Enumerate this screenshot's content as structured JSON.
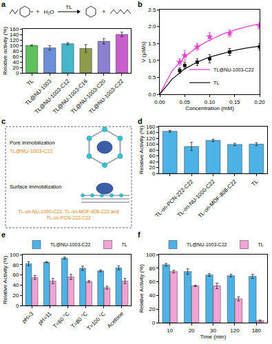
{
  "chart_data": [
    {
      "panel": "a",
      "type": "bar",
      "annotations": [
        "+",
        "H₂O",
        "TL",
        "+"
      ],
      "ylabel": "Relative activity (%)",
      "categories": [
        "TL",
        "TL@NU-1003",
        "TL@NU-1003-C12",
        "TL@NU-1003-C16",
        "TL@NU-1003-C20",
        "TL@NU-1003-C22"
      ],
      "values": [
        100,
        91,
        106,
        89,
        115,
        140
      ],
      "errors": [
        2,
        8,
        4,
        14,
        10,
        8
      ],
      "colors": [
        "#5ec15e",
        "#6a8fd8",
        "#44b7c9",
        "#8f9b4c",
        "#8a7fd0",
        "#c85fcc"
      ],
      "ylim": [
        0,
        160
      ],
      "yticks": [
        0,
        20,
        40,
        60,
        80,
        100,
        120,
        140,
        160
      ]
    },
    {
      "panel": "b",
      "type": "line",
      "xlabel": "Concentration (mM)",
      "ylabel": "V (μM/s)",
      "xlim": [
        0,
        0.2
      ],
      "xticks": [
        {
          "value": 0,
          "label": "0.00"
        },
        0.05,
        {
          "value": 0.1,
          "label": "0.10"
        },
        0.15,
        {
          "value": 0.2,
          "label": "0.20"
        }
      ],
      "ylim": [
        0,
        2.5
      ],
      "yticks": [
        {
          "value": 0,
          "label": "0.0"
        },
        0.5,
        {
          "value": 1,
          "label": "1.0"
        },
        1.5,
        {
          "value": 2,
          "label": "2.0"
        },
        2.5
      ],
      "legend": "bottom-right",
      "series": [
        {
          "name": "TL@NU-1003-C22",
          "color": "#e040d0",
          "marker": "star",
          "x": [
            0.04,
            0.05,
            0.075,
            0.1,
            0.14,
            0.2
          ],
          "values": [
            0.95,
            1.15,
            1.4,
            1.7,
            1.8,
            2.02
          ],
          "errors": [
            0.1,
            0.15,
            0.1,
            0.12,
            0.1,
            0.1
          ],
          "fit": {
            "x": [
              0,
              0.025,
              0.05,
              0.075,
              0.1,
              0.125,
              0.15,
              0.175,
              0.2
            ],
            "values": [
              0,
              0.7,
              1.1,
              1.4,
              1.6,
              1.77,
              1.9,
              2.0,
              2.08
            ]
          }
        },
        {
          "name": "TL",
          "color": "#111111",
          "marker": "square",
          "x": [
            0.04,
            0.05,
            0.075,
            0.1,
            0.14,
            0.2
          ],
          "values": [
            0.7,
            0.85,
            0.95,
            1.05,
            1.25,
            1.4
          ],
          "errors": [
            0.08,
            0.1,
            0.1,
            0.12,
            0.1,
            0.1
          ],
          "fit": {
            "x": [
              0,
              0.025,
              0.05,
              0.075,
              0.1,
              0.125,
              0.15,
              0.175,
              0.2
            ],
            "values": [
              0,
              0.45,
              0.75,
              0.95,
              1.1,
              1.2,
              1.3,
              1.37,
              1.42
            ]
          }
        }
      ]
    },
    {
      "panel": "c",
      "type": "diagram",
      "pore": {
        "title": "Pore immobilization",
        "label": "TL@NU-1003-C22"
      },
      "surface": {
        "title": "Surface immobilization",
        "label": "TL-on-NU-1000-C22, TL-on-MOF-808-C22 and TL-on-PCN-222-C22"
      }
    },
    {
      "panel": "d",
      "type": "bar",
      "ylabel": "Relative Activity (%)",
      "categories": [
        "TL@NU-1003-C22",
        "TL-on-PCN-222-C22",
        "TL-on-NU-1000-C22",
        "TL-on-MOF-808-C22",
        "TL"
      ],
      "values": [
        144,
        92,
        113,
        99,
        100
      ],
      "errors": [
        3,
        14,
        4,
        4,
        5
      ],
      "color": "#4db3e6",
      "ylim": [
        0,
        160
      ],
      "yticks": [
        0,
        20,
        40,
        60,
        80,
        100,
        120,
        140,
        160
      ]
    },
    {
      "panel": "e",
      "type": "bar",
      "ylabel": "Relative Activity (%)",
      "categories": [
        "pH=3",
        "pH=11",
        "T=60 °C",
        "T=80 °C",
        "T=100 °C",
        "Acetone"
      ],
      "legend": "top",
      "series": [
        {
          "name": "TL@NU-1003-C22",
          "color": "#4db3e6",
          "values": [
            82,
            85,
            93,
            73,
            68,
            74
          ],
          "errors": [
            4,
            1,
            2,
            4,
            2,
            4
          ]
        },
        {
          "name": "TL",
          "color": "#f2a3d6",
          "values": [
            55,
            48,
            56,
            47,
            35,
            48
          ],
          "errors": [
            4,
            5,
            5,
            2,
            3,
            5
          ]
        }
      ],
      "ylim": [
        0,
        100
      ],
      "yticks": [
        0,
        20,
        40,
        60,
        80,
        100
      ]
    },
    {
      "panel": "f",
      "type": "bar",
      "xlabel": "Time (min)",
      "ylabel": "Relative Activity (%)",
      "categories": [
        "10",
        "20",
        "30",
        "120",
        "180"
      ],
      "legend": "top",
      "series": [
        {
          "name": "TL@NU-1003-C22",
          "color": "#4db3e6",
          "values": [
            85,
            75,
            70,
            69,
            68
          ],
          "errors": [
            2,
            4,
            2,
            2,
            3
          ]
        },
        {
          "name": "TL",
          "color": "#f2a3d6",
          "values": [
            75,
            54,
            54,
            35,
            3
          ],
          "errors": [
            2,
            1,
            4,
            3,
            1
          ]
        }
      ],
      "ylim": [
        0,
        100
      ],
      "yticks": [
        0,
        20,
        40,
        60,
        80,
        100
      ]
    }
  ]
}
